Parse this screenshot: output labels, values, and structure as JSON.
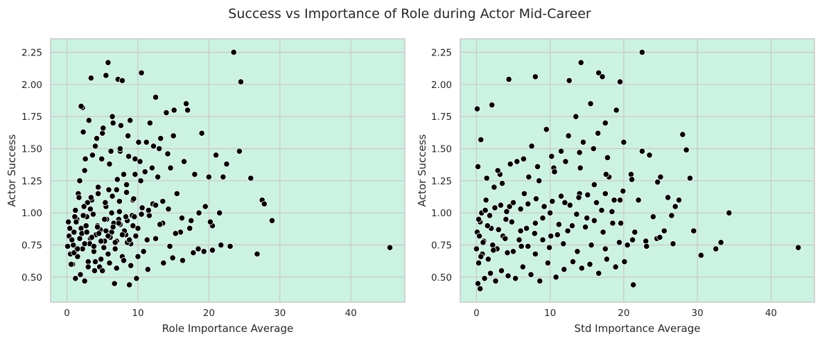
{
  "figure": {
    "title": "Success vs Importance of Role during Actor Mid-Career",
    "background": "#ffffff",
    "plot_background": "#ccf2e2",
    "grid_color": "#c8c8c8",
    "point_color": "#000000",
    "point_edge": "#ffffff"
  },
  "chart_data": [
    {
      "type": "scatter",
      "title": "",
      "xlabel": "Role Importance Average",
      "ylabel": "Actor Success",
      "xlim": [
        -2.3,
        47.6
      ],
      "ylim": [
        0.305,
        2.355
      ],
      "xticks": [
        0,
        10,
        20,
        30,
        40
      ],
      "yticks": [
        0.5,
        0.75,
        1.0,
        1.25,
        1.5,
        1.75,
        2.0,
        2.25
      ],
      "grid": true,
      "x": [
        0.1,
        0.3,
        0.5,
        0.2,
        0.8,
        1.0,
        1.2,
        0.9,
        1.5,
        1.4,
        1.6,
        2.0,
        1.8,
        2.2,
        2.5,
        2.8,
        3.0,
        2.6,
        3.3,
        3.5,
        3.8,
        4.0,
        4.3,
        4.5,
        4.8,
        5.0,
        5.3,
        5.5,
        5.8,
        6.0,
        6.3,
        6.5,
        6.8,
        7.0,
        7.3,
        7.5,
        7.8,
        8.0,
        8.3,
        8.6,
        9.0,
        9.3,
        9.6,
        10.0,
        10.4,
        10.8,
        11.2,
        11.6,
        12.0,
        12.5,
        13.0,
        13.5,
        14.0,
        14.5,
        15.0,
        15.5,
        16.0,
        16.5,
        17.0,
        17.5,
        18.0,
        18.5,
        19.0,
        19.5,
        20.0,
        20.5,
        21.0,
        21.5,
        22.0,
        22.5,
        23.0,
        23.5,
        24.3,
        24.5,
        25.9,
        26.8,
        27.5,
        27.8,
        28.9,
        45.5,
        5.8,
        2.2,
        2.0,
        3.4,
        10.5,
        12.5,
        5.5,
        7.2,
        7.8,
        2.5,
        1.2,
        0.6,
        1.9,
        3.9,
        4.6,
        6.7,
        8.8,
        9.8,
        11.4,
        13.6,
        14.9,
        16.3,
        17.8,
        19.3,
        20.5,
        21.7,
        2.3,
        3.1,
        4.2,
        5.1,
        6.4,
        7.6,
        8.9,
        10.1,
        11.7,
        13.2,
        15.1,
        16.8,
        1.7,
        2.9,
        4.4,
        5.9,
        7.1,
        8.4,
        9.6,
        11.0,
        12.8,
        14.6,
        3.6,
        4.9,
        6.2,
        7.5,
        8.7,
        10.3,
        12.2,
        14.2,
        0.4,
        0.7,
        1.1,
        1.3,
        2.1,
        2.7,
        3.2,
        3.7,
        4.1,
        4.7,
        5.2,
        5.6,
        6.1,
        6.6,
        7.0,
        7.4,
        8.1,
        8.5,
        9.2,
        9.7,
        10.6,
        11.3,
        12.1,
        13.1,
        14.3,
        15.3,
        16.2,
        17.3,
        18.6,
        20.2,
        3.0,
        4.0,
        5.0,
        6.0,
        7.0,
        8.0,
        9.0,
        10.0,
        2.4,
        3.4,
        4.4,
        5.4,
        6.4,
        7.4,
        8.4,
        9.4,
        1.0,
        1.5,
        2.5,
        3.5,
        4.5,
        5.5,
        6.5,
        7.5,
        8.5,
        9.5,
        10.5,
        11.5,
        12.5,
        13.5,
        1.3,
        2.3,
        3.3,
        4.3,
        5.3,
        6.3,
        7.3,
        8.3,
        9.3,
        1.8,
        2.8,
        3.8,
        4.8,
        5.8,
        6.8,
        7.8,
        8.8
      ],
      "y": [
        0.74,
        0.82,
        0.68,
        0.93,
        0.6,
        0.85,
        1.02,
        0.75,
        0.66,
        0.95,
        1.15,
        0.88,
        1.25,
        0.72,
        1.33,
        0.97,
        0.62,
        1.42,
        0.8,
        1.1,
        0.7,
        1.52,
        0.9,
        1.2,
        0.64,
        1.62,
        0.78,
        1.05,
        0.68,
        1.38,
        0.85,
        1.7,
        0.72,
        1.18,
        0.95,
        1.48,
        0.66,
        1.3,
        0.83,
        1.6,
        0.76,
        1.1,
        1.42,
        0.88,
        1.25,
        0.7,
        1.55,
        0.98,
        1.35,
        0.8,
        1.5,
        0.92,
        1.78,
        0.74,
        1.6,
        1.15,
        0.85,
        1.4,
        1.8,
        0.94,
        1.3,
        0.72,
        1.62,
        1.05,
        1.28,
        0.9,
        1.45,
        1.0,
        1.28,
        1.38,
        0.74,
        2.25,
        1.48,
        2.02,
        1.27,
        0.68,
        1.1,
        1.07,
        0.94,
        0.73,
        2.17,
        1.82,
        1.83,
        2.05,
        2.09,
        1.9,
        2.07,
        2.04,
        2.03,
        0.47,
        0.49,
        0.6,
        0.52,
        0.55,
        0.58,
        0.45,
        0.44,
        0.49,
        0.56,
        0.61,
        0.65,
        0.63,
        0.69,
        0.7,
        0.71,
        0.75,
        1.63,
        1.72,
        1.58,
        1.66,
        1.75,
        1.68,
        1.72,
        1.55,
        1.7,
        1.58,
        1.8,
        1.85,
        1.12,
        1.08,
        1.2,
        1.18,
        1.26,
        1.22,
        1.3,
        1.32,
        1.28,
        1.35,
        1.45,
        1.42,
        1.48,
        1.5,
        1.44,
        1.4,
        1.52,
        1.46,
        0.88,
        0.79,
        0.97,
        0.71,
        0.84,
        0.9,
        0.76,
        0.99,
        0.83,
        0.87,
        0.73,
        0.95,
        0.81,
        0.92,
        0.78,
        1.01,
        0.86,
        0.77,
        0.98,
        0.82,
        1.04,
        0.79,
        1.07,
        0.91,
        1.03,
        0.84,
        0.96,
        0.88,
        1.0,
        0.93,
        0.58,
        0.62,
        0.55,
        0.61,
        0.57,
        0.63,
        0.59,
        0.66,
        1.05,
        1.12,
        1.15,
        1.08,
        1.13,
        1.09,
        1.16,
        1.11,
        0.69,
        0.72,
        0.76,
        0.81,
        0.84,
        0.86,
        0.89,
        0.91,
        0.94,
        0.97,
        0.99,
        1.02,
        1.06,
        1.09,
        0.93,
        0.98,
        1.03,
        0.89,
        0.95,
        1.0,
        0.92,
        0.97,
        0.9,
        0.8,
        0.85,
        0.74,
        0.78,
        0.82,
        0.77,
        0.83,
        0.79
      ]
    },
    {
      "type": "scatter",
      "title": "",
      "xlabel": "Std Importance Average",
      "ylabel": "Actor Success",
      "xlim": [
        -2.2,
        45.9
      ],
      "ylim": [
        0.305,
        2.355
      ],
      "xticks": [
        0,
        10,
        20,
        30,
        40
      ],
      "yticks": [
        0.5,
        0.75,
        1.0,
        1.25,
        1.5,
        1.75,
        2.0,
        2.25
      ],
      "grid": true,
      "x": [
        0.0,
        0.1,
        0.3,
        0.5,
        0.2,
        0.8,
        1.0,
        1.3,
        1.6,
        2.0,
        2.4,
        2.8,
        3.2,
        3.6,
        4.0,
        4.5,
        5.0,
        5.5,
        6.0,
        6.5,
        7.0,
        7.5,
        8.0,
        8.5,
        9.0,
        9.5,
        10.0,
        10.5,
        11.0,
        11.5,
        12.0,
        12.5,
        13.0,
        13.5,
        14.0,
        14.5,
        15.0,
        15.5,
        16.0,
        16.5,
        17.0,
        17.5,
        18.0,
        18.5,
        19.0,
        19.5,
        20.0,
        20.5,
        21.0,
        21.5,
        22.0,
        22.5,
        23.0,
        23.5,
        24.0,
        24.5,
        25.0,
        25.5,
        26.0,
        26.5,
        27.0,
        27.5,
        28.0,
        28.5,
        29.0,
        29.5,
        30.5,
        32.5,
        33.2,
        34.3,
        43.7,
        0.1,
        0.6,
        2.1,
        4.4,
        8.0,
        12.6,
        14.2,
        16.6,
        17.1,
        19.5,
        22.5,
        0.2,
        0.5,
        1.1,
        1.9,
        2.6,
        3.4,
        4.3,
        5.3,
        6.3,
        7.4,
        8.6,
        9.7,
        10.8,
        11.9,
        13.1,
        14.3,
        15.4,
        16.6,
        17.7,
        18.9,
        20.1,
        21.3,
        0.4,
        0.9,
        1.5,
        2.2,
        3.0,
        3.9,
        4.8,
        5.8,
        6.8,
        7.9,
        9.0,
        10.1,
        11.2,
        12.4,
        13.6,
        14.8,
        16.0,
        17.2,
        18.4,
        19.6,
        0.3,
        0.7,
        1.2,
        1.8,
        2.5,
        3.3,
        4.1,
        5.0,
        6.0,
        7.0,
        8.1,
        9.2,
        10.3,
        11.5,
        12.7,
        13.9,
        15.1,
        16.3,
        17.5,
        18.7,
        19.9,
        1.4,
        2.9,
        4.6,
        6.4,
        8.3,
        10.2,
        12.1,
        14.0,
        15.9,
        17.8,
        0.6,
        2.3,
        4.2,
        6.1,
        8.0,
        9.9,
        11.8,
        13.7,
        15.6,
        17.5,
        19.4,
        21.2,
        23.1,
        24.9,
        26.7,
        3.5,
        7.1,
        10.6,
        14.1,
        17.6,
        21.1,
        24.6
      ],
      "y": [
        0.72,
        0.85,
        0.61,
        0.93,
        1.36,
        0.68,
        0.78,
        1.1,
        0.64,
        0.88,
        1.2,
        0.72,
        1.3,
        0.82,
        0.95,
        1.05,
        0.7,
        1.4,
        0.86,
        1.15,
        0.74,
        1.52,
        0.92,
        1.25,
        0.79,
        1.65,
        1.0,
        1.35,
        0.83,
        1.48,
        1.08,
        1.6,
        0.9,
        1.75,
        1.15,
        1.55,
        0.96,
        1.85,
        1.22,
        1.62,
        1.02,
        1.7,
        1.28,
        0.92,
        1.8,
        1.1,
        1.55,
        0.75,
        1.3,
        0.85,
        1.1,
        1.48,
        0.78,
        1.45,
        0.97,
        0.8,
        1.28,
        0.86,
        1.12,
        0.98,
        1.05,
        1.1,
        1.61,
        1.49,
        1.27,
        0.86,
        0.67,
        0.72,
        0.77,
        1.0,
        0.73,
        1.81,
        1.57,
        1.84,
        2.04,
        2.06,
        2.03,
        2.17,
        2.09,
        2.06,
        2.02,
        2.25,
        0.45,
        0.41,
        0.49,
        0.53,
        0.47,
        0.55,
        0.51,
        0.49,
        0.58,
        0.52,
        0.47,
        0.61,
        0.5,
        0.56,
        0.62,
        0.57,
        0.6,
        0.53,
        0.64,
        0.58,
        0.62,
        0.44,
        0.82,
        0.77,
        0.9,
        0.75,
        0.87,
        0.8,
        0.93,
        0.79,
        0.88,
        0.84,
        0.96,
        0.82,
        0.91,
        0.86,
        0.99,
        0.89,
        0.94,
        0.85,
        1.01,
        0.92,
        0.95,
        1.0,
        1.02,
        0.98,
        1.04,
        1.06,
        1.01,
        1.08,
        1.03,
        1.07,
        1.11,
        1.05,
        1.09,
        1.13,
        1.06,
        1.12,
        1.14,
        1.08,
        1.15,
        1.1,
        1.17,
        1.27,
        1.33,
        1.38,
        1.42,
        1.36,
        1.44,
        1.4,
        1.47,
        1.5,
        1.43,
        0.66,
        0.71,
        0.69,
        0.74,
        0.68,
        0.73,
        0.76,
        0.7,
        0.75,
        0.72,
        0.77,
        0.79,
        0.74,
        0.81,
        0.76,
        1.23,
        1.28,
        1.32,
        1.35,
        1.3,
        1.26,
        1.24
      ]
    }
  ]
}
